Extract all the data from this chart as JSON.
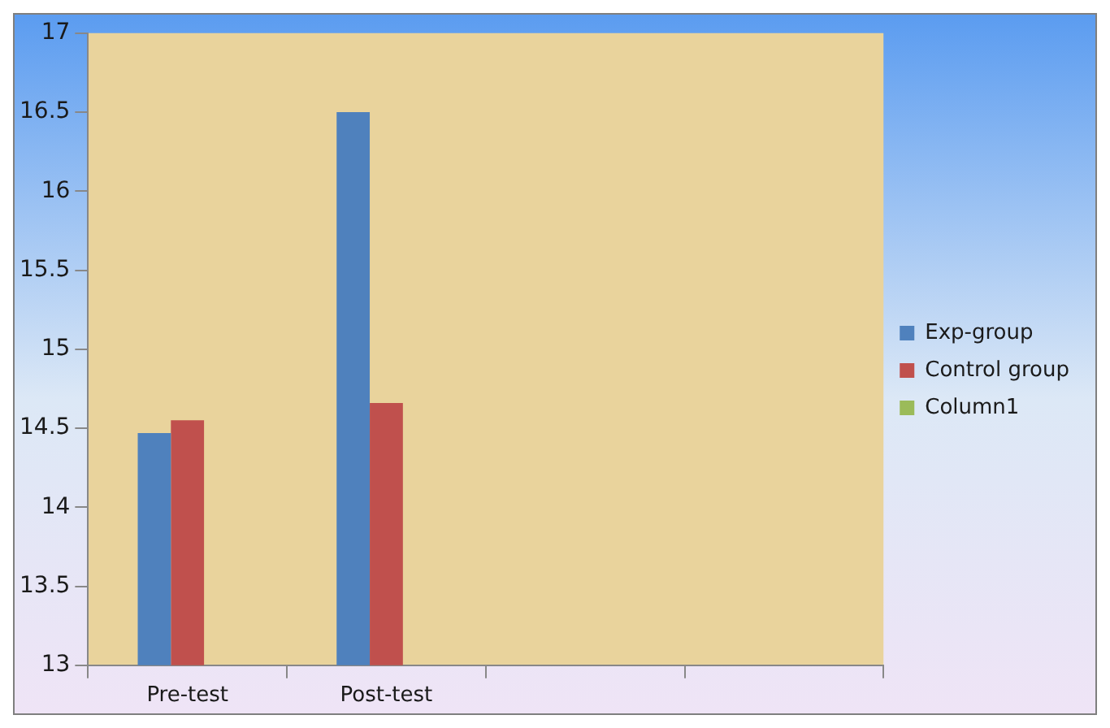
{
  "chart_data": {
    "type": "bar",
    "categories": [
      "Pre-test",
      "Post-test",
      null,
      null
    ],
    "series": [
      {
        "name": "Exp-group",
        "color": "#4f81bd",
        "values": [
          14.47,
          16.5,
          null,
          null
        ]
      },
      {
        "name": "Control group",
        "color": "#c0504d",
        "values": [
          14.55,
          14.66,
          null,
          null
        ]
      },
      {
        "name": "Column1",
        "color": "#9bbb59",
        "values": [
          null,
          null,
          null,
          null
        ]
      }
    ],
    "ylim": [
      13,
      17
    ],
    "yticks": [
      13,
      13.5,
      14,
      14.5,
      15,
      15.5,
      16,
      16.5,
      17
    ],
    "grid": false,
    "legend": "right"
  }
}
